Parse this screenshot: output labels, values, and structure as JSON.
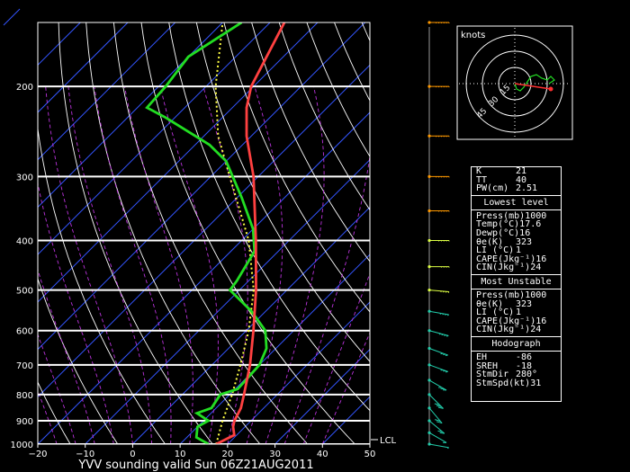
{
  "title": "YVV sounding valid Sun 06Z21AUG2011",
  "colors": {
    "temperature": "#ff4040",
    "dewpoint": "#22dd22",
    "parcel": "#ffff44",
    "isotherm": "#3355ff",
    "dry_adiabat": "#ffffff",
    "moist_adiabat": "#bb33dd",
    "hodograph_red": "#ff3030",
    "wind_low": "#22ccaa",
    "wind_high": "#ff9900"
  },
  "chart_data": {
    "type": "skew-t",
    "title": "YVV sounding valid Sun 06Z21AUG2011",
    "xlim": [
      -20,
      50
    ],
    "x_ticks": [
      -20,
      -10,
      0,
      10,
      20,
      30,
      40,
      50
    ],
    "pressure_levels": [
      200,
      300,
      400,
      500,
      600,
      700,
      800,
      900,
      1000
    ],
    "ptop": 150,
    "lcl_label": "LCL",
    "lcl_pressure": 1000,
    "temperature": [
      {
        "p": 1000,
        "t": 17.6
      },
      {
        "p": 960,
        "t": 19.5
      },
      {
        "p": 925,
        "t": 17.5
      },
      {
        "p": 900,
        "t": 16.5
      },
      {
        "p": 850,
        "t": 15.2
      },
      {
        "p": 800,
        "t": 13.0
      },
      {
        "p": 700,
        "t": 8.0
      },
      {
        "p": 600,
        "t": 1.5
      },
      {
        "p": 500,
        "t": -6.5
      },
      {
        "p": 400,
        "t": -17.0
      },
      {
        "p": 300,
        "t": -31.0
      },
      {
        "p": 250,
        "t": -41.0
      },
      {
        "p": 220,
        "t": -47.0
      },
      {
        "p": 200,
        "t": -50.5
      },
      {
        "p": 150,
        "t": -57.0
      }
    ],
    "dewpoint": [
      {
        "p": 1000,
        "t": 16.0
      },
      {
        "p": 970,
        "t": 12.0
      },
      {
        "p": 925,
        "t": 10.0
      },
      {
        "p": 900,
        "t": 11.0
      },
      {
        "p": 870,
        "t": 7.0
      },
      {
        "p": 850,
        "t": 9.0
      },
      {
        "p": 800,
        "t": 8.0
      },
      {
        "p": 780,
        "t": 10.5
      },
      {
        "p": 700,
        "t": 10.0
      },
      {
        "p": 650,
        "t": 8.0
      },
      {
        "p": 600,
        "t": 4.0
      },
      {
        "p": 550,
        "t": -3.0
      },
      {
        "p": 500,
        "t": -12.0
      },
      {
        "p": 480,
        "t": -12.5
      },
      {
        "p": 420,
        "t": -15.0
      },
      {
        "p": 380,
        "t": -20.0
      },
      {
        "p": 330,
        "t": -29.0
      },
      {
        "p": 280,
        "t": -40.0
      },
      {
        "p": 260,
        "t": -47.0
      },
      {
        "p": 230,
        "t": -62.0
      },
      {
        "p": 220,
        "t": -68.0
      },
      {
        "p": 200,
        "t": -68.5
      },
      {
        "p": 175,
        "t": -70.0
      },
      {
        "p": 150,
        "t": -66.0
      }
    ],
    "parcel": [
      {
        "p": 1000,
        "t": 17.6
      },
      {
        "p": 900,
        "t": 14.0
      },
      {
        "p": 800,
        "t": 10.5
      },
      {
        "p": 700,
        "t": 6.0
      },
      {
        "p": 600,
        "t": 0.5
      },
      {
        "p": 500,
        "t": -7.0
      },
      {
        "p": 400,
        "t": -18.5
      },
      {
        "p": 300,
        "t": -36.0
      },
      {
        "p": 250,
        "t": -47.0
      },
      {
        "p": 200,
        "t": -58.0
      },
      {
        "p": 150,
        "t": -70.0
      }
    ]
  },
  "wind_barbs": [
    {
      "p": 1000,
      "dir": 280,
      "spd": 5
    },
    {
      "p": 950,
      "dir": 300,
      "spd": 10
    },
    {
      "p": 900,
      "dir": 310,
      "spd": 15
    },
    {
      "p": 850,
      "dir": 320,
      "spd": 20
    },
    {
      "p": 800,
      "dir": 315,
      "spd": 25
    },
    {
      "p": 750,
      "dir": 300,
      "spd": 25
    },
    {
      "p": 700,
      "dir": 290,
      "spd": 30
    },
    {
      "p": 650,
      "dir": 290,
      "spd": 30
    },
    {
      "p": 600,
      "dir": 285,
      "spd": 35
    },
    {
      "p": 550,
      "dir": 280,
      "spd": 35
    },
    {
      "p": 500,
      "dir": 275,
      "spd": 40
    },
    {
      "p": 450,
      "dir": 270,
      "spd": 40
    },
    {
      "p": 400,
      "dir": 270,
      "spd": 45
    },
    {
      "p": 350,
      "dir": 270,
      "spd": 50
    },
    {
      "p": 300,
      "dir": 270,
      "spd": 55
    },
    {
      "p": 250,
      "dir": 270,
      "spd": 60
    },
    {
      "p": 200,
      "dir": 270,
      "spd": 60
    },
    {
      "p": 150,
      "dir": 270,
      "spd": 55
    }
  ],
  "hodograph": {
    "label": "knots",
    "ring_labels": [
      "15",
      "30",
      "45"
    ]
  },
  "indices": {
    "general": [
      {
        "label": "K",
        "value": "21"
      },
      {
        "label": "TT",
        "value": "40"
      },
      {
        "label": "PW(cm)",
        "value": "2.51"
      }
    ],
    "lowest_title": "Lowest level",
    "lowest": [
      {
        "label": "Press(mb)",
        "value": "1000"
      },
      {
        "label": "Temp(°C)",
        "value": "17.6"
      },
      {
        "label": "Dewp(°C)",
        "value": "16"
      },
      {
        "label": "θe(K)",
        "value": "323"
      },
      {
        "label": "LI (°C)",
        "value": "1"
      },
      {
        "label": "CAPE(Jkg⁻¹)",
        "value": "16"
      },
      {
        "label": "CIN(Jkg⁻¹)",
        "value": "24"
      }
    ],
    "unstable_title": "Most Unstable",
    "unstable": [
      {
        "label": "Press(mb)",
        "value": "1000"
      },
      {
        "label": "θe(K)",
        "value": "323"
      },
      {
        "label": "LI (°C)",
        "value": "1"
      },
      {
        "label": "CAPE(Jkg⁻¹)",
        "value": "16"
      },
      {
        "label": "CIN(Jkg⁻¹)",
        "value": "24"
      }
    ],
    "hodo_title": "Hodograph",
    "hodo": [
      {
        "label": "EH",
        "value": "-86"
      },
      {
        "label": "SREH",
        "value": "-18"
      },
      {
        "label": "StmDir",
        "value": "280°"
      },
      {
        "label": "StmSpd(kt)",
        "value": "31"
      }
    ]
  }
}
